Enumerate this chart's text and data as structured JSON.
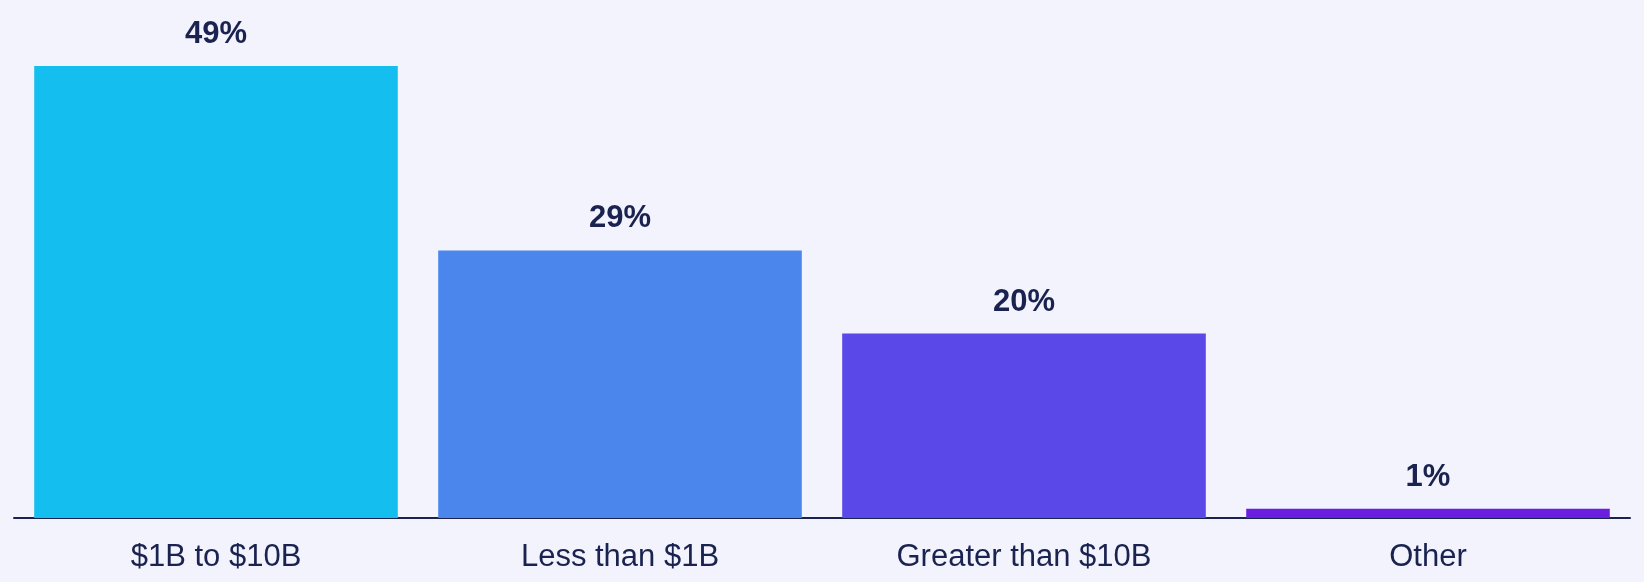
{
  "chart_data": {
    "type": "bar",
    "categories": [
      "$1B to $10B",
      "Less than $1B",
      "Greater than $10B",
      "Other"
    ],
    "values": [
      49,
      29,
      20,
      1
    ],
    "colors": [
      "#14bff0",
      "#4a86ec",
      "#5a48e8",
      "#6a1ee0"
    ],
    "value_labels": [
      "49%",
      "29%",
      "20%",
      "1%"
    ]
  }
}
